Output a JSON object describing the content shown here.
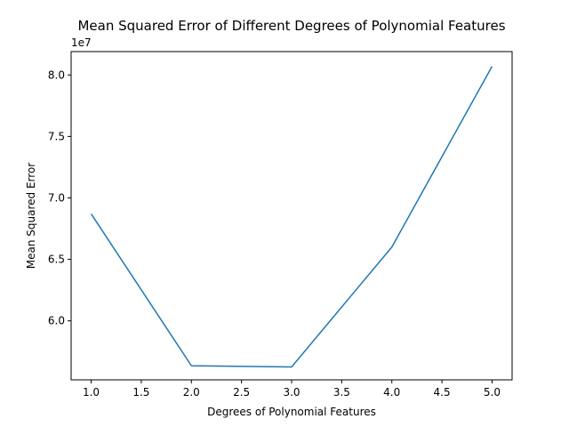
{
  "chart_data": {
    "type": "line",
    "title": "Mean Squared Error of Different Degrees of Polynomial Features",
    "xlabel": "Degrees of Polynomial Features",
    "ylabel": "Mean Squared Error",
    "y_offset_label": "1e7",
    "x": [
      1,
      2,
      3,
      4,
      5
    ],
    "series": [
      {
        "values": [
          68700000,
          56350000,
          56250000,
          66000000,
          80700000
        ],
        "color": "#1f77b4"
      }
    ],
    "xlim": [
      0.8,
      5.2
    ],
    "ylim": [
      55200000,
      81900000
    ],
    "x_ticks": [
      1.0,
      1.5,
      2.0,
      2.5,
      3.0,
      3.5,
      4.0,
      4.5,
      5.0
    ],
    "x_tick_labels": [
      "1.0",
      "1.5",
      "2.0",
      "2.5",
      "3.0",
      "3.5",
      "4.0",
      "4.5",
      "5.0"
    ],
    "y_ticks": [
      60000000,
      65000000,
      70000000,
      75000000,
      80000000
    ],
    "y_tick_labels": [
      "6.0",
      "6.5",
      "7.0",
      "7.5",
      "8.0"
    ],
    "grid": false,
    "legend": "none"
  }
}
